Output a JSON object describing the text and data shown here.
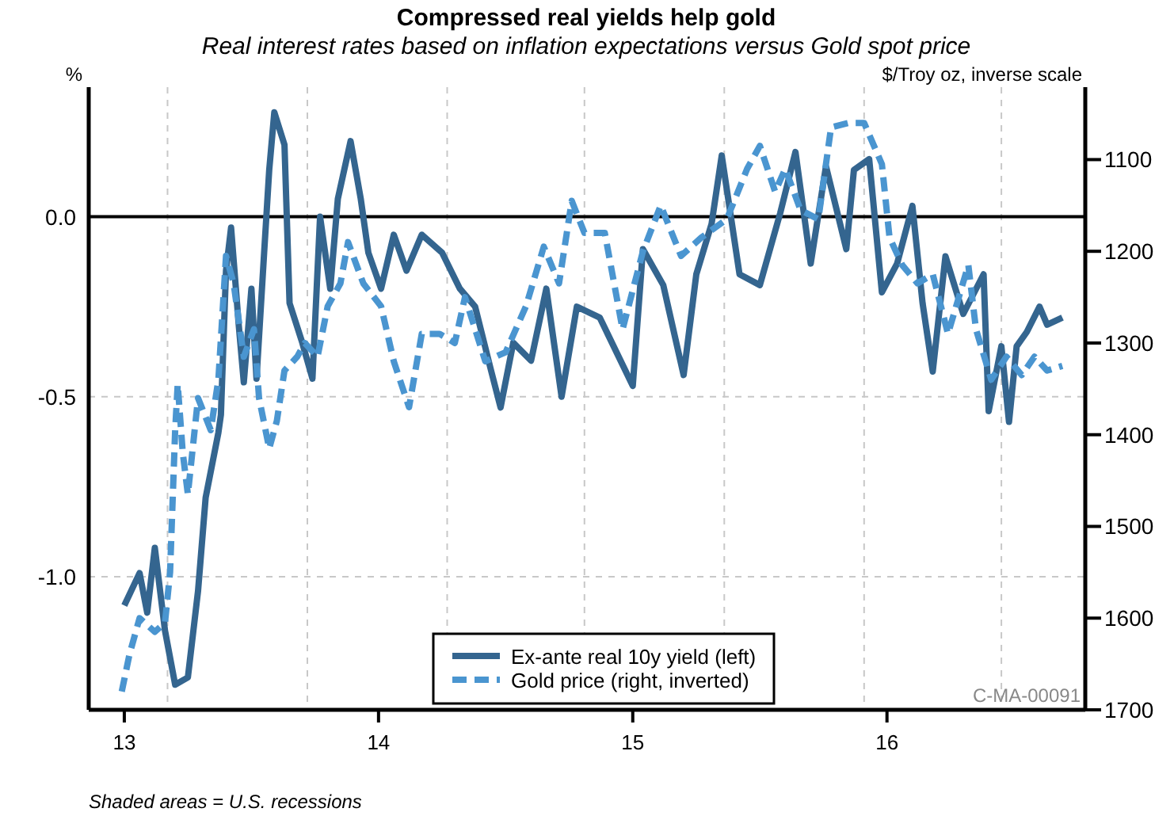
{
  "chart_data": {
    "type": "line",
    "title": "Compressed real yields help gold",
    "subtitle": "Real interest rates based on inflation expectations versus Gold spot price",
    "ylabel": "%",
    "y2label": "$/Troy oz, inverse scale",
    "xlim": [
      12.86,
      16.78
    ],
    "xticks": [
      13,
      14,
      15,
      16,
      {
        "value": 13.17,
        "label": null
      },
      {
        "value": 13.72,
        "label": null
      },
      {
        "value": 14.27,
        "label": null
      },
      {
        "value": 14.81,
        "label": null
      },
      {
        "value": 15.36,
        "label": null
      },
      {
        "value": 15.91,
        "label": null
      },
      {
        "value": 16.45,
        "label": null
      }
    ],
    "ylim": [
      -1.37,
      0.36
    ],
    "yticks": [
      {
        "value": -1,
        "label": "-1.0"
      },
      {
        "value": -0.5,
        "label": "-0.5"
      },
      {
        "value": 0,
        "label": "0.0"
      }
    ],
    "y2lim": [
      1700,
      1021
    ],
    "y2ticks": [
      1100,
      1200,
      1300,
      1400,
      1500,
      1600,
      1700
    ],
    "grid": true,
    "legend": "bottom",
    "ref_lines": [
      {
        "axis": "y",
        "value": 0,
        "color": "#000000"
      }
    ],
    "annotations": [
      "C-MA-00091",
      "Shaded areas = U.S. recessions"
    ],
    "series": [
      {
        "name": "Ex-ante real 10y yield (left)",
        "color": "#34658f",
        "line_style": "solid",
        "x": [
          13.0,
          13.06,
          13.09,
          13.12,
          13.16,
          13.2,
          13.25,
          13.29,
          13.32,
          13.37,
          13.38,
          13.4,
          13.42,
          13.45,
          13.47,
          13.5,
          13.52,
          13.55,
          13.57,
          13.59,
          13.63,
          13.65,
          13.7,
          13.74,
          13.77,
          13.81,
          13.84,
          13.89,
          13.93,
          13.96,
          14.01,
          14.06,
          14.11,
          14.17,
          14.25,
          14.32,
          14.38,
          14.44,
          14.48,
          14.53,
          14.6,
          14.66,
          14.72,
          14.78,
          14.87,
          15.0,
          15.04,
          15.12,
          15.2,
          15.25,
          15.31,
          15.35,
          15.42,
          15.5,
          15.58,
          15.64,
          15.7,
          15.76,
          15.84,
          15.87,
          15.93,
          15.98,
          16.04,
          16.1,
          16.14,
          16.18,
          16.23,
          16.3,
          16.38,
          16.4,
          16.45,
          16.48,
          16.51,
          16.55,
          16.6,
          16.63,
          16.69
        ],
        "values": [
          -1.08,
          -0.99,
          -1.1,
          -0.92,
          -1.15,
          -1.3,
          -1.28,
          -1.04,
          -0.78,
          -0.6,
          -0.55,
          -0.15,
          -0.03,
          -0.3,
          -0.46,
          -0.2,
          -0.45,
          -0.1,
          0.13,
          0.29,
          0.2,
          -0.24,
          -0.35,
          -0.45,
          0.0,
          -0.2,
          0.05,
          0.21,
          0.05,
          -0.1,
          -0.2,
          -0.05,
          -0.15,
          -0.05,
          -0.1,
          -0.2,
          -0.25,
          -0.42,
          -0.53,
          -0.35,
          -0.4,
          -0.2,
          -0.5,
          -0.25,
          -0.28,
          -0.47,
          -0.09,
          -0.19,
          -0.44,
          -0.16,
          -0.02,
          0.17,
          -0.16,
          -0.19,
          0.01,
          0.18,
          -0.13,
          0.14,
          -0.09,
          0.13,
          0.16,
          -0.21,
          -0.13,
          0.03,
          -0.24,
          -0.43,
          -0.11,
          -0.27,
          -0.16,
          -0.54,
          -0.36,
          -0.57,
          -0.36,
          -0.32,
          -0.25,
          -0.3,
          -0.28
        ]
      },
      {
        "name": "Gold price (right, inverted)",
        "color": "#4a95d0",
        "line_style": "dashed",
        "axis": "y2",
        "x": [
          12.99,
          13.02,
          13.06,
          13.12,
          13.16,
          13.18,
          13.2,
          13.21,
          13.23,
          13.25,
          13.29,
          13.34,
          13.37,
          13.4,
          13.43,
          13.47,
          13.51,
          13.53,
          13.57,
          13.6,
          13.63,
          13.68,
          13.71,
          13.76,
          13.8,
          13.85,
          13.88,
          13.94,
          14.01,
          14.06,
          14.12,
          14.17,
          14.24,
          14.3,
          14.34,
          14.42,
          14.5,
          14.58,
          14.65,
          14.71,
          14.76,
          14.81,
          14.89,
          14.96,
          15.04,
          15.11,
          15.19,
          15.27,
          15.37,
          15.45,
          15.5,
          15.56,
          15.6,
          15.66,
          15.73,
          15.78,
          15.85,
          15.91,
          15.98,
          16.01,
          16.06,
          16.12,
          16.18,
          16.24,
          16.32,
          16.35,
          16.41,
          16.47,
          16.53,
          16.58,
          16.63,
          16.69
        ],
        "values": [
          1680,
          1640,
          1600,
          1615,
          1605,
          1550,
          1395,
          1345,
          1420,
          1465,
          1360,
          1395,
          1340,
          1205,
          1235,
          1315,
          1285,
          1360,
          1415,
          1385,
          1330,
          1315,
          1300,
          1315,
          1260,
          1235,
          1190,
          1235,
          1260,
          1320,
          1370,
          1290,
          1290,
          1300,
          1250,
          1320,
          1310,
          1260,
          1195,
          1235,
          1145,
          1180,
          1180,
          1285,
          1200,
          1150,
          1205,
          1185,
          1165,
          1110,
          1085,
          1135,
          1110,
          1155,
          1165,
          1065,
          1060,
          1060,
          1105,
          1185,
          1215,
          1235,
          1225,
          1290,
          1215,
          1285,
          1340,
          1315,
          1335,
          1315,
          1330,
          1325
        ]
      }
    ]
  }
}
